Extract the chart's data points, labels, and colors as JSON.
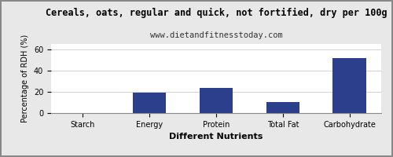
{
  "title": "Cereals, oats, regular and quick, not fortified, dry per 100g",
  "subtitle": "www.dietandfitnesstoday.com",
  "categories": [
    "Starch",
    "Energy",
    "Protein",
    "Total Fat",
    "Carbohydrate"
  ],
  "values": [
    0,
    19.5,
    23.5,
    10.5,
    52.0
  ],
  "bar_color": "#2b3f8c",
  "xlabel": "Different Nutrients",
  "ylabel": "Percentage of RDH (%)",
  "ylim": [
    0,
    65
  ],
  "yticks": [
    0,
    20,
    40,
    60
  ],
  "background_color": "#e8e8e8",
  "plot_bg_color": "#ffffff",
  "title_fontsize": 8.5,
  "subtitle_fontsize": 7.5,
  "xlabel_fontsize": 8,
  "ylabel_fontsize": 7,
  "tick_fontsize": 7
}
